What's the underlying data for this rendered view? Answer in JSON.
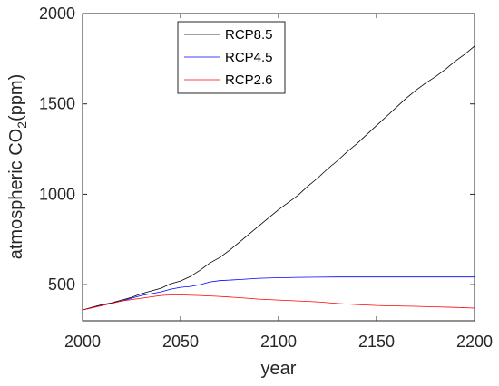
{
  "chart_data": {
    "type": "line",
    "xlabel": "year",
    "ylabel_prefix": "atmospheric CO",
    "ylabel_subscript": "2",
    "ylabel_suffix": "(ppm)",
    "xlim": [
      2000,
      2200
    ],
    "ylim": [
      300,
      2000
    ],
    "xticks": [
      2000,
      2050,
      2100,
      2150,
      2200
    ],
    "yticks": [
      500,
      1000,
      1500,
      2000
    ],
    "grid": false,
    "legend_position": "top-center",
    "series": [
      {
        "name": "RCP8.5",
        "color": "#000000",
        "x": [
          2000,
          2005,
          2010,
          2015,
          2020,
          2025,
          2030,
          2035,
          2040,
          2045,
          2050,
          2055,
          2060,
          2065,
          2070,
          2075,
          2080,
          2085,
          2090,
          2095,
          2100,
          2105,
          2110,
          2115,
          2120,
          2125,
          2130,
          2135,
          2140,
          2145,
          2150,
          2155,
          2160,
          2165,
          2170,
          2175,
          2180,
          2185,
          2190,
          2195,
          2200
        ],
        "values": [
          360,
          375,
          390,
          400,
          415,
          430,
          450,
          465,
          480,
          505,
          520,
          545,
          580,
          620,
          650,
          690,
          735,
          780,
          825,
          870,
          915,
          955,
          995,
          1045,
          1090,
          1140,
          1185,
          1235,
          1280,
          1330,
          1380,
          1430,
          1480,
          1530,
          1575,
          1615,
          1650,
          1690,
          1735,
          1775,
          1820
        ]
      },
      {
        "name": "RCP4.5",
        "color": "#0000ff",
        "x": [
          2000,
          2010,
          2020,
          2030,
          2040,
          2045,
          2050,
          2055,
          2060,
          2065,
          2070,
          2080,
          2090,
          2100,
          2110,
          2120,
          2130,
          2140,
          2150,
          2160,
          2170,
          2180,
          2190,
          2200
        ],
        "values": [
          360,
          385,
          410,
          440,
          460,
          475,
          485,
          490,
          500,
          515,
          522,
          528,
          535,
          538,
          540,
          541,
          542,
          542,
          542,
          542,
          542,
          542,
          542,
          542
        ]
      },
      {
        "name": "RCP2.6",
        "color": "#ff0000",
        "x": [
          2000,
          2010,
          2020,
          2030,
          2040,
          2045,
          2050,
          2060,
          2070,
          2080,
          2090,
          2100,
          2110,
          2120,
          2130,
          2140,
          2150,
          2160,
          2170,
          2180,
          2190,
          2200
        ],
        "values": [
          360,
          385,
          410,
          425,
          440,
          443,
          443,
          440,
          435,
          428,
          420,
          415,
          410,
          405,
          396,
          390,
          385,
          382,
          380,
          377,
          374,
          370
        ]
      }
    ]
  }
}
